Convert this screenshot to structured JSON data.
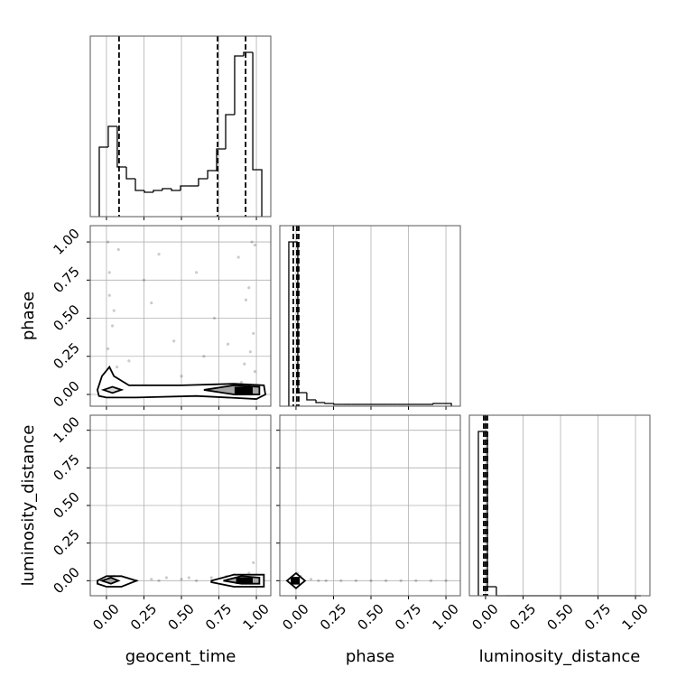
{
  "chart_data": [
    {
      "type": "histogram",
      "color": "#000000",
      "bins": [
        -0.048,
        0.012,
        0.072,
        0.133,
        0.193,
        0.253,
        0.313,
        0.373,
        0.434,
        0.494,
        0.554,
        0.614,
        0.675,
        0.735,
        0.795,
        0.855,
        0.915,
        0.976,
        1.036
      ],
      "values": [
        77,
        100,
        55,
        42,
        29,
        27,
        29,
        31,
        29,
        34,
        34,
        42,
        51,
        75,
        113,
        178,
        182,
        52
      ],
      "quantiles": [
        0.084,
        0.741,
        0.928
      ],
      "xlim": [
        -0.108,
        1.096
      ],
      "ylim": [
        0,
        200
      ],
      "xticks": [
        0,
        0.25,
        0.5,
        0.75,
        1
      ],
      "grid": true
    },
    {
      "type": "scatter",
      "ylabel": "phase",
      "color": "#000000",
      "x": [
        0.02,
        0.05,
        0.01,
        0.08,
        0.03,
        0.95,
        0.98,
        0.92,
        0.97,
        0.99,
        0.3,
        0.45,
        0.6,
        0.15,
        0.72,
        0.88,
        0.04,
        0.06,
        0.96,
        0.93,
        0.5,
        0.25,
        0.81,
        0.01,
        0.99,
        0.07,
        0.9,
        0.35,
        0.65,
        0.02
      ],
      "y": [
        0.8,
        0.55,
        0.3,
        0.95,
        0.1,
        0.7,
        0.4,
        0.2,
        1.0,
        0.15,
        0.6,
        0.35,
        0.8,
        0.22,
        0.5,
        0.9,
        0.45,
        0.05,
        0.28,
        0.62,
        0.12,
        0.75,
        0.33,
        1.0,
        0.98,
        0.18,
        0.08,
        0.92,
        0.25,
        0.65
      ],
      "contours": [
        {
          "fill": "#ffffff",
          "x": [
            -0.06,
            -0.03,
            0.02,
            0.05,
            0.15,
            0.5,
            0.85,
            1.05,
            1.06,
            1.0,
            0.6,
            0.2,
            0.0,
            -0.05
          ],
          "y": [
            0.03,
            0.12,
            0.18,
            0.12,
            0.06,
            0.06,
            0.07,
            0.06,
            0.0,
            -0.03,
            -0.01,
            -0.02,
            -0.02,
            -0.01
          ]
        },
        {
          "fill": "#d9d9d9",
          "x": [
            -0.02,
            0.04,
            0.1,
            0.04
          ],
          "y": [
            0.03,
            0.05,
            0.03,
            0.01
          ]
        },
        {
          "fill": "#a6a6a6",
          "x": [
            0.65,
            0.85,
            1.02,
            1.02,
            0.85
          ],
          "y": [
            0.03,
            0.06,
            0.05,
            0.0,
            0.0
          ]
        },
        {
          "fill": "#000000",
          "x": [
            0.86,
            0.97,
            0.97,
            0.86
          ],
          "y": [
            0.0,
            0.0,
            0.045,
            0.045
          ]
        }
      ],
      "xlim": [
        -0.108,
        1.096
      ],
      "ylim": [
        -0.077,
        1.107
      ],
      "xticks": [
        0,
        0.25,
        0.5,
        0.75,
        1
      ],
      "yticks": [
        {
          "value": 0,
          "label": "0.00"
        },
        {
          "value": 0.25,
          "label": "0.25"
        },
        {
          "value": 0.5,
          "label": "0.50"
        },
        {
          "value": 0.75,
          "label": "0.75"
        },
        {
          "value": 1,
          "label": "1.00"
        }
      ],
      "grid": true
    },
    {
      "type": "histogram",
      "color": "#000000",
      "bins": [
        -0.048,
        0.012,
        0.072,
        0.133,
        0.193,
        0.253,
        0.313,
        0.373,
        0.434,
        0.494,
        0.554,
        0.614,
        0.675,
        0.735,
        0.795,
        0.855,
        0.915,
        0.976,
        1.036
      ],
      "values": [
        182,
        15,
        7,
        4,
        3,
        2,
        2,
        2,
        2,
        2,
        2,
        2,
        2,
        2,
        2,
        2,
        3,
        3
      ],
      "quantiles": [
        -0.018,
        0.006,
        0.018
      ],
      "xlim": [
        -0.108,
        1.096
      ],
      "ylim": [
        0,
        200
      ],
      "xticks": [
        0,
        0.25,
        0.5,
        0.75,
        1
      ],
      "grid": true
    },
    {
      "type": "scatter",
      "xlabel": "geocent_time",
      "ylabel": "luminosity_distance",
      "color": "#000000",
      "x": [
        0.02,
        0.1,
        0.2,
        0.3,
        0.4,
        0.5,
        0.6,
        0.7,
        0.8,
        0.9,
        0.95,
        0.98,
        0.05,
        0.35,
        0.55,
        0.85,
        0.99,
        0.15
      ],
      "y": [
        0.01,
        0.02,
        0.0,
        0.01,
        0.02,
        0.01,
        0.0,
        0.02,
        0.03,
        0.01,
        0.05,
        0.12,
        0.03,
        0.0,
        0.02,
        0.04,
        0.02,
        0.01
      ],
      "contours": [
        {
          "fill": "#ffffff",
          "x": [
            -0.06,
            0.0,
            0.1,
            0.2,
            0.1,
            0.0,
            -0.06
          ],
          "y": [
            0.0,
            0.03,
            0.03,
            0.0,
            -0.04,
            -0.04,
            -0.02
          ]
        },
        {
          "fill": "#a6a6a6",
          "x": [
            -0.03,
            0.03,
            0.08,
            0.03
          ],
          "y": [
            0.0,
            0.02,
            0.0,
            -0.02
          ]
        },
        {
          "fill": "#ffffff",
          "x": [
            0.7,
            0.85,
            1.05,
            1.05,
            0.85,
            0.7
          ],
          "y": [
            0.0,
            0.04,
            0.04,
            -0.04,
            -0.04,
            -0.01
          ]
        },
        {
          "fill": "#a6a6a6",
          "x": [
            0.78,
            0.9,
            1.02,
            1.02,
            0.9
          ],
          "y": [
            0.0,
            0.03,
            0.02,
            -0.02,
            -0.02
          ]
        },
        {
          "fill": "#000000",
          "x": [
            0.87,
            0.97,
            0.97,
            0.87
          ],
          "y": [
            -0.015,
            -0.015,
            0.015,
            0.015
          ]
        }
      ],
      "xlim": [
        -0.108,
        1.096
      ],
      "ylim": [
        -0.1,
        1.1
      ],
      "xticks": [
        {
          "value": 0,
          "label": "0.00"
        },
        {
          "value": 0.25,
          "label": "0.25"
        },
        {
          "value": 0.5,
          "label": "0.50"
        },
        {
          "value": 0.75,
          "label": "0.75"
        },
        {
          "value": 1,
          "label": "1.00"
        }
      ],
      "yticks": [
        {
          "value": 0,
          "label": "0.00"
        },
        {
          "value": 0.25,
          "label": "0.25"
        },
        {
          "value": 0.5,
          "label": "0.50"
        },
        {
          "value": 0.75,
          "label": "0.75"
        },
        {
          "value": 1,
          "label": "1.00"
        }
      ],
      "grid": true
    },
    {
      "type": "scatter",
      "xlabel": "phase",
      "color": "#000000",
      "x": [
        0.0,
        0.02,
        0.05,
        0.1,
        0.2,
        0.3,
        0.4,
        0.5,
        0.6,
        0.7,
        0.8,
        0.9,
        1.0,
        0.03,
        0.15,
        0.01
      ],
      "y": [
        0.0,
        0.01,
        0.0,
        0.01,
        0.0,
        0.0,
        0.0,
        0.0,
        0.0,
        0.0,
        0.0,
        0.0,
        0.0,
        0.03,
        0.0,
        0.05
      ],
      "contours": [
        {
          "fill": "#ffffff",
          "x": [
            -0.06,
            0.0,
            0.06,
            0.0
          ],
          "y": [
            0.0,
            0.05,
            0.0,
            -0.05
          ]
        },
        {
          "fill": "#000000",
          "x": [
            -0.03,
            0.02,
            0.02,
            -0.03
          ],
          "y": [
            -0.02,
            -0.02,
            0.02,
            0.02
          ]
        }
      ],
      "xlim": [
        -0.108,
        1.096
      ],
      "ylim": [
        -0.1,
        1.1
      ],
      "xticks": [
        {
          "value": 0,
          "label": "0.00"
        },
        {
          "value": 0.25,
          "label": "0.25"
        },
        {
          "value": 0.5,
          "label": "0.50"
        },
        {
          "value": 0.75,
          "label": "0.75"
        },
        {
          "value": 1,
          "label": "1.00"
        }
      ],
      "yticks": [
        0,
        0.25,
        0.5,
        0.75,
        1
      ],
      "grid": true
    },
    {
      "type": "histogram",
      "xlabel": "luminosity_distance",
      "color": "#000000",
      "bins": [
        -0.048,
        0.012,
        0.072,
        0.133,
        0.193,
        0.253,
        0.313,
        0.373,
        0.434,
        0.494,
        0.554,
        0.614,
        0.675,
        0.735,
        0.795,
        0.855,
        0.915,
        0.976,
        1.036
      ],
      "values": [
        182,
        10,
        0,
        0,
        0,
        0,
        0,
        0,
        0,
        0,
        0,
        0,
        0,
        0,
        0,
        0,
        0,
        0
      ],
      "quantiles": [
        -0.012,
        0.0,
        0.012
      ],
      "xlim": [
        -0.108,
        1.096
      ],
      "ylim": [
        0,
        200
      ],
      "xticks": [
        {
          "value": 0,
          "label": "0.00"
        },
        {
          "value": 0.25,
          "label": "0.25"
        },
        {
          "value": 0.5,
          "label": "0.50"
        },
        {
          "value": 0.75,
          "label": "0.75"
        },
        {
          "value": 1,
          "label": "1.00"
        }
      ],
      "grid": true
    }
  ]
}
